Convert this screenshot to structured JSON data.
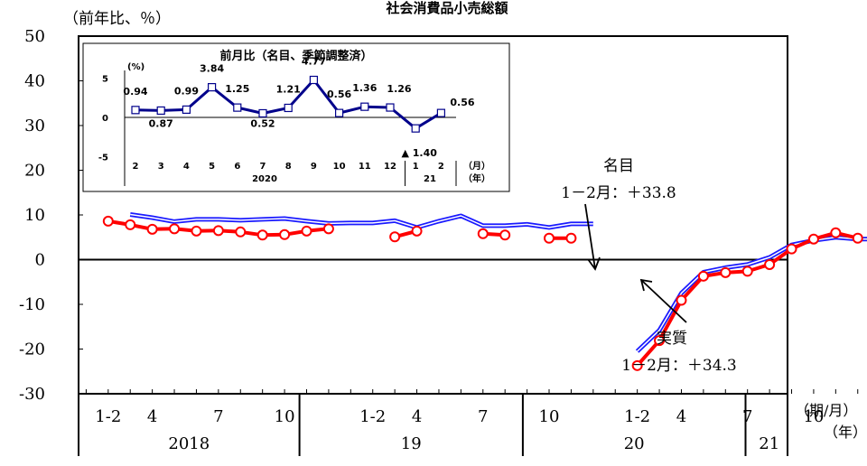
{
  "chart_data": [
    {
      "type": "line",
      "title": "社会消費品小売総額",
      "ylabel": "（前年比、％）",
      "ylim": [
        -30,
        50
      ],
      "yticks": [
        50,
        40,
        30,
        20,
        10,
        0,
        -10,
        -20,
        -30
      ],
      "ytick_labels": [
        "50",
        "40",
        "30",
        "20",
        "10",
        "0",
        "-10",
        "-20",
        "-30"
      ],
      "x_tick_labels": [
        "1-2",
        "4",
        "7",
        "10",
        "1-2",
        "4",
        "7",
        "10",
        "1-2",
        "4",
        "7",
        "10",
        "1-2"
      ],
      "x_tick_months": [
        2,
        4,
        7,
        10,
        14,
        16,
        19,
        22,
        26,
        28,
        31,
        34,
        38
      ],
      "year_labels": [
        "2018",
        "19",
        "20",
        "21"
      ],
      "x_unit_label": "（期/月）",
      "year_unit_label": "（年）",
      "series": [
        {
          "color": "#1a1aff",
          "style": "double-line",
          "x": [
            1,
            3,
            4,
            5,
            6,
            7,
            8,
            9,
            10,
            11,
            12,
            13,
            14,
            15,
            16,
            17,
            18,
            19,
            20,
            21,
            22,
            23,
            24,
            26,
            27,
            28,
            29,
            30,
            31,
            32,
            33,
            34,
            35,
            36,
            37,
            38
          ],
          "y": [
            9.7,
            10.1,
            9.4,
            8.5,
            9.0,
            9.0,
            8.8,
            9.0,
            9.2,
            8.6,
            8.1,
            8.2,
            8.2,
            8.7,
            7.2,
            8.6,
            9.8,
            7.6,
            7.6,
            7.9,
            7.2,
            8.0,
            8.0,
            -20.5,
            -15.8,
            -7.5,
            -2.8,
            -1.8,
            -1.1,
            0.5,
            3.3,
            4.3,
            5.0,
            4.6,
            4.6,
            33.8
          ]
        },
        {
          "color": "#ff0000",
          "style": "thick-line-circles",
          "x": [
            2,
            3,
            4,
            5,
            6,
            7,
            8,
            9,
            10,
            11,
            12,
            13,
            15,
            16,
            19,
            20,
            22,
            23,
            26,
            27,
            28,
            29,
            30,
            31,
            32,
            33,
            34,
            35,
            36,
            37,
            38
          ],
          "y": [
            8.6,
            7.8,
            6.8,
            6.9,
            6.4,
            6.5,
            6.2,
            5.5,
            5.6,
            6.4,
            6.9,
            null,
            5.1,
            6.4,
            5.8,
            5.5,
            4.8,
            4.8,
            -23.7,
            -18.1,
            -9.1,
            -3.7,
            -2.9,
            -2.6,
            -1.1,
            2.4,
            4.6,
            6.0,
            4.8,
            null,
            34.3
          ]
        }
      ],
      "annotations": [
        {
          "name": "nominal",
          "text1": "名目",
          "text2": "1－2月：＋33.8"
        },
        {
          "name": "real",
          "text1": "実質",
          "text2": "1－2月：＋34.3"
        }
      ]
    },
    {
      "type": "line",
      "title": "前月比（名目、季節調整済）",
      "ylabel": "(%)",
      "ylim": [
        -5,
        5
      ],
      "yticks": [
        5,
        0,
        -5
      ],
      "ytick_labels": [
        "5",
        "0",
        "-5"
      ],
      "categories": [
        "2",
        "3",
        "4",
        "5",
        "6",
        "7",
        "8",
        "9",
        "10",
        "11",
        "12",
        "1",
        "2"
      ],
      "years": [
        "2020",
        "21"
      ],
      "x_unit_label": "（月）",
      "year_unit_label": "（年）",
      "series": [
        {
          "color": "#00008b",
          "values": [
            0.94,
            0.87,
            0.99,
            3.84,
            1.25,
            0.52,
            1.21,
            4.77,
            0.56,
            1.36,
            1.26,
            -1.4,
            0.56
          ]
        }
      ],
      "value_labels": [
        "0.94",
        "0.87",
        "0.99",
        "3.84",
        "1.25",
        "0.52",
        "1.21",
        "4.77",
        "0.56",
        "1.36",
        "1.26",
        "▲ 1.40",
        "0.56"
      ]
    }
  ]
}
